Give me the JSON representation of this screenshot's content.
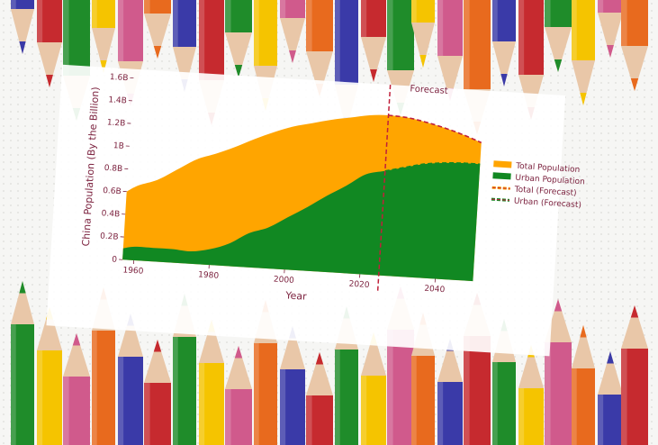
{
  "chart_data": {
    "type": "area",
    "title": "",
    "xlabel": "Year",
    "ylabel": "China Population (By the Billion)",
    "xlim": [
      1957,
      2050
    ],
    "ylim": [
      0,
      1.6
    ],
    "x_ticks": [
      {
        "value": 1960,
        "label": "1960"
      },
      {
        "value": 1980,
        "label": "1980"
      },
      {
        "value": 2000,
        "label": "2000"
      },
      {
        "value": 2020,
        "label": "2020"
      },
      {
        "value": 2040,
        "label": "2040"
      }
    ],
    "y_ticks": [
      {
        "value": 0,
        "label": "0"
      },
      {
        "value": 0.2,
        "label": "0.2B"
      },
      {
        "value": 0.4,
        "label": "0.4B"
      },
      {
        "value": 0.6,
        "label": "0.6B"
      },
      {
        "value": 0.8,
        "label": "0.8B"
      },
      {
        "value": 1.0,
        "label": "1B"
      },
      {
        "value": 1.2,
        "label": "1.2B"
      },
      {
        "value": 1.4,
        "label": "1.4B"
      },
      {
        "value": 1.6,
        "label": "1.6B"
      }
    ],
    "forecast_start": 2025,
    "forecast_label": "Forecast",
    "x": [
      1957,
      1960,
      1965,
      1970,
      1975,
      1980,
      1985,
      1990,
      1995,
      2000,
      2005,
      2010,
      2015,
      2020,
      2025
    ],
    "series": [
      {
        "name": "Total Population",
        "values": [
          0.6,
          0.66,
          0.72,
          0.82,
          0.92,
          0.98,
          1.05,
          1.13,
          1.2,
          1.26,
          1.3,
          1.34,
          1.37,
          1.4,
          1.41
        ]
      },
      {
        "name": "Urban Population",
        "values": [
          0.1,
          0.12,
          0.12,
          0.12,
          0.11,
          0.14,
          0.2,
          0.3,
          0.36,
          0.46,
          0.56,
          0.67,
          0.77,
          0.88,
          0.92
        ]
      }
    ],
    "forecast_x": [
      2025,
      2030,
      2035,
      2040,
      2045,
      2050
    ],
    "forecast_series": [
      {
        "name": "Total (Forecast)",
        "values": [
          1.41,
          1.4,
          1.37,
          1.33,
          1.28,
          1.22
        ]
      },
      {
        "name": "Urban (Forecast)",
        "values": [
          0.92,
          0.96,
          1.0,
          1.02,
          1.03,
          1.03
        ]
      }
    ],
    "legend": [
      {
        "label": "Total Population",
        "style": "solid",
        "color": "#FFA500"
      },
      {
        "label": "Urban Population",
        "style": "solid",
        "color": "#118822"
      },
      {
        "label": "Total (Forecast)",
        "style": "dashed",
        "color": "#FFA500"
      },
      {
        "label": "Urban (Forecast)",
        "style": "dashed",
        "color": "#118822"
      }
    ],
    "legend_position": "right",
    "grid": false,
    "colors": {
      "total": "#FFA500",
      "urban": "#118822",
      "forecast_line": "#C0203A",
      "text": "#7A1F3C"
    }
  },
  "decoration": {
    "description_icons": [
      "colored-pencil-icon"
    ],
    "pencil_colors": [
      "#3A3AA8",
      "#C62A2F",
      "#1F8C2A",
      "#F5C400",
      "#D05A8C",
      "#E86A1E"
    ]
  }
}
